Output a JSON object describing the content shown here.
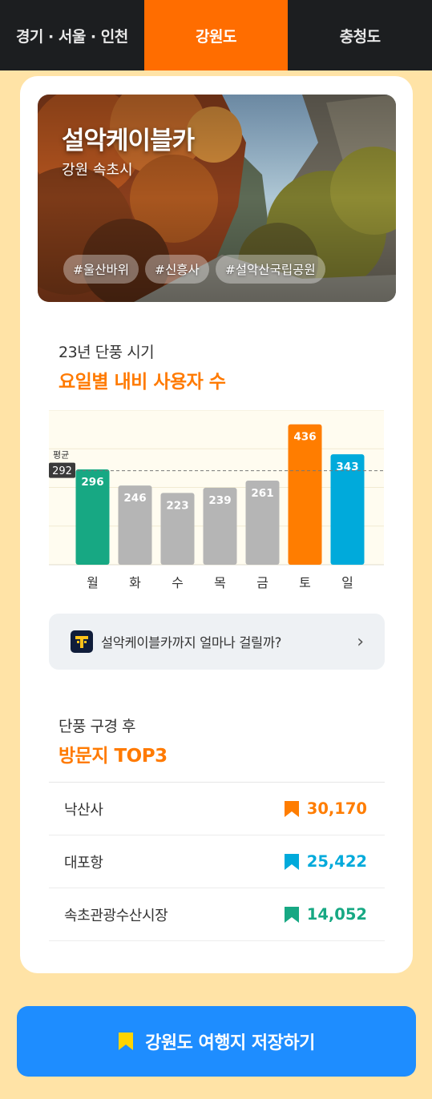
{
  "tabs": [
    {
      "label": "경기 · 서울 · 인천",
      "active": false
    },
    {
      "label": "강원도",
      "active": true
    },
    {
      "label": "충청도",
      "active": false
    }
  ],
  "hero": {
    "title": "설악케이블카",
    "location": "강원 속초시",
    "tags": [
      "#울산바위",
      "#신흥사",
      "#설악산국립공원"
    ]
  },
  "chart_section": {
    "subtitle": "23년 단풍 시기",
    "title": "요일별 내비 사용자 수"
  },
  "chart_data": {
    "type": "bar",
    "categories": [
      "월",
      "화",
      "수",
      "목",
      "금",
      "토",
      "일"
    ],
    "values": [
      296,
      246,
      223,
      239,
      261,
      436,
      343
    ],
    "colors": [
      "#17a883",
      "#b5b5b5",
      "#b5b5b5",
      "#b5b5b5",
      "#b5b5b5",
      "#ff7d00",
      "#00aadb"
    ],
    "average": 292,
    "average_label": "평균",
    "ylim": [
      0,
      480
    ],
    "grid": true
  },
  "navlink": {
    "label": "설악케이블카까지 얼마나 걸릴까?",
    "icon": "tmap-icon"
  },
  "top3_section": {
    "subtitle": "단풍 구경 후",
    "title": "방문지 TOP3"
  },
  "top3": [
    {
      "name": "낙산사",
      "value": "30,170",
      "color": "#ff7d00"
    },
    {
      "name": "대포항",
      "value": "25,422",
      "color": "#00aadb"
    },
    {
      "name": "속초관광수산시장",
      "value": "14,052",
      "color": "#17a883"
    }
  ],
  "save_button": {
    "label": "강원도 여행지 저장하기",
    "icon_color": "#ffd400"
  }
}
